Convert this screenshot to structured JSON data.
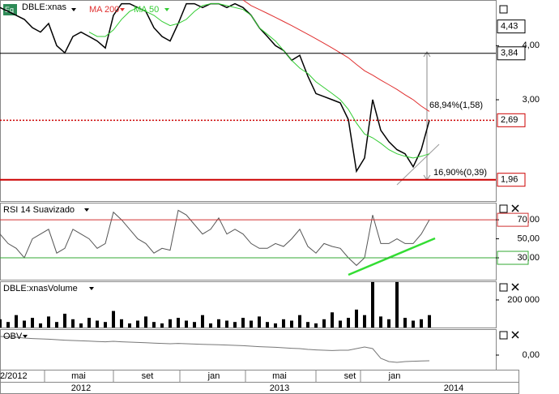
{
  "chart_data": [
    {
      "type": "line",
      "title": "DBLE:xnas",
      "log": true,
      "ylim": [
        1.75,
        5.1
      ],
      "yticks": [
        {
          "value": 4,
          "label": "4,00"
        },
        {
          "value": 3,
          "label": "3,00"
        }
      ],
      "levels": [
        {
          "value": 4.43,
          "label": "4,43",
          "color": "#000000",
          "style": "none"
        },
        {
          "value": 3.84,
          "label": "3,84",
          "color": "#000000",
          "style": "solid"
        },
        {
          "value": 2.69,
          "label": "2,69",
          "color": "#cc0000",
          "style": "dotted"
        },
        {
          "value": 1.96,
          "label": "1,96",
          "color": "#cc0000",
          "style": "thick"
        }
      ],
      "annotations": [
        "68,94%(1,58)",
        "16,90%(0,39)"
      ],
      "xlim": [
        0,
        61.2
      ],
      "xticks": [
        {
          "value": 0,
          "label": "2/2012"
        },
        {
          "value": 9.7,
          "label": "mai"
        },
        {
          "value": 18.2,
          "label": "set"
        },
        {
          "value": 26.4,
          "label": "jan"
        },
        {
          "value": 34.5,
          "label": "mai"
        },
        {
          "value": 43.2,
          "label": "set"
        },
        {
          "value": 48.7,
          "label": "jan"
        }
      ],
      "years": [
        {
          "value": 10,
          "label": "2012"
        },
        {
          "value": 34.5,
          "label": "2013"
        },
        {
          "value": 56,
          "label": "2014"
        }
      ],
      "series": [
        {
          "name": "DBLE:xnas",
          "color": "#000000",
          "values": [
            4.9,
            4.8,
            4.7,
            4.6,
            4.4,
            4.3,
            4.5,
            4.0,
            3.85,
            4.2,
            4.3,
            4.2,
            4.1,
            3.95,
            4.7,
            5.0,
            5.0,
            4.9,
            4.8,
            4.4,
            4.2,
            4.1,
            4.5,
            5.0,
            5.0,
            4.9,
            5.0,
            5.0,
            4.9,
            5.0,
            4.9,
            4.7,
            4.4,
            4.2,
            4.0,
            3.9,
            3.7,
            3.8,
            3.4,
            3.1,
            3.05,
            3.0,
            2.95,
            2.7,
            2.05,
            2.2,
            3.0,
            2.55,
            2.4,
            2.3,
            2.25,
            2.1,
            2.3,
            2.69
          ]
        },
        {
          "name": "MA 200",
          "color": "#e03030",
          "values": [
            null,
            null,
            null,
            null,
            null,
            null,
            null,
            null,
            null,
            null,
            null,
            null,
            null,
            null,
            null,
            null,
            null,
            null,
            null,
            null,
            null,
            null,
            null,
            null,
            null,
            null,
            null,
            null,
            null,
            null,
            5.1,
            4.95,
            4.85,
            4.75,
            4.65,
            4.55,
            4.45,
            4.35,
            4.25,
            4.15,
            4.05,
            3.95,
            3.85,
            3.75,
            3.62,
            3.5,
            3.42,
            3.33,
            3.25,
            3.17,
            3.08,
            3.0,
            2.9,
            2.82
          ]
        },
        {
          "name": "MA 50",
          "color": "#33cc33",
          "values": [
            null,
            null,
            null,
            null,
            null,
            null,
            null,
            null,
            null,
            null,
            null,
            4.3,
            4.2,
            4.2,
            4.35,
            4.6,
            4.8,
            4.9,
            4.8,
            4.7,
            4.55,
            4.45,
            4.5,
            4.6,
            4.8,
            4.95,
            5.0,
            5.0,
            4.95,
            4.9,
            4.85,
            4.7,
            4.4,
            4.25,
            4.1,
            3.9,
            3.7,
            3.55,
            3.45,
            3.3,
            3.2,
            3.1,
            3.0,
            2.85,
            2.65,
            2.5,
            2.45,
            2.38,
            2.3,
            2.25,
            2.22,
            2.2,
            2.22,
            2.25
          ]
        }
      ]
    },
    {
      "type": "line",
      "title": "RSI 14 Suavizado",
      "ylim": [
        7,
        88
      ],
      "yticks": [
        {
          "value": 70,
          "label": "70,00"
        },
        {
          "value": 50,
          "label": "50,00"
        },
        {
          "value": 30,
          "label": "30,00"
        }
      ],
      "series": [
        {
          "name": "RSI",
          "color": "#555555",
          "values": [
            55,
            45,
            40,
            30,
            50,
            55,
            60,
            35,
            40,
            60,
            55,
            50,
            40,
            45,
            78,
            70,
            60,
            50,
            45,
            35,
            40,
            38,
            80,
            75,
            65,
            55,
            60,
            72,
            55,
            60,
            55,
            45,
            40,
            40,
            45,
            42,
            50,
            60,
            42,
            35,
            45,
            42,
            40,
            30,
            22,
            30,
            75,
            45,
            45,
            50,
            45,
            45,
            55,
            70
          ]
        }
      ]
    },
    {
      "type": "bar",
      "title": "DBLE:xnasVolume",
      "ylim": [
        0,
        335000
      ],
      "yticks": [
        {
          "value": 200000,
          "label": "200 000"
        }
      ],
      "series": [
        {
          "name": "Volume",
          "color": "#000000",
          "values": [
            60000,
            40000,
            90000,
            50000,
            70000,
            30000,
            80000,
            40000,
            100000,
            60000,
            30000,
            70000,
            50000,
            40000,
            120000,
            60000,
            30000,
            50000,
            80000,
            40000,
            30000,
            60000,
            70000,
            50000,
            40000,
            90000,
            30000,
            60000,
            50000,
            40000,
            70000,
            50000,
            80000,
            40000,
            30000,
            60000,
            50000,
            90000,
            40000,
            30000,
            60000,
            110000,
            50000,
            70000,
            130000,
            90000,
            330000,
            80000,
            60000,
            330000,
            70000,
            50000,
            60000,
            90000
          ]
        }
      ]
    },
    {
      "type": "line",
      "title": "OBV",
      "ylim": [
        -0.9,
        1.6
      ],
      "yticks": [
        {
          "value": 0,
          "label": "0,00"
        }
      ],
      "series": [
        {
          "name": "OBV",
          "color": "#777777",
          "values": [
            1.15,
            1.12,
            1.1,
            1.05,
            1.02,
            1.0,
            0.98,
            0.95,
            0.92,
            0.9,
            0.88,
            0.86,
            0.84,
            0.82,
            0.85,
            0.82,
            0.8,
            0.78,
            0.76,
            0.74,
            0.72,
            0.7,
            0.72,
            0.7,
            0.68,
            0.66,
            0.65,
            0.64,
            0.62,
            0.6,
            0.58,
            0.55,
            0.52,
            0.5,
            0.48,
            0.45,
            0.42,
            0.4,
            0.35,
            0.32,
            0.3,
            0.28,
            0.3,
            0.3,
            0.4,
            0.5,
            0.4,
            -0.2,
            -0.4,
            -0.45,
            -0.4,
            -0.38,
            -0.36,
            -0.35
          ]
        }
      ]
    }
  ]
}
